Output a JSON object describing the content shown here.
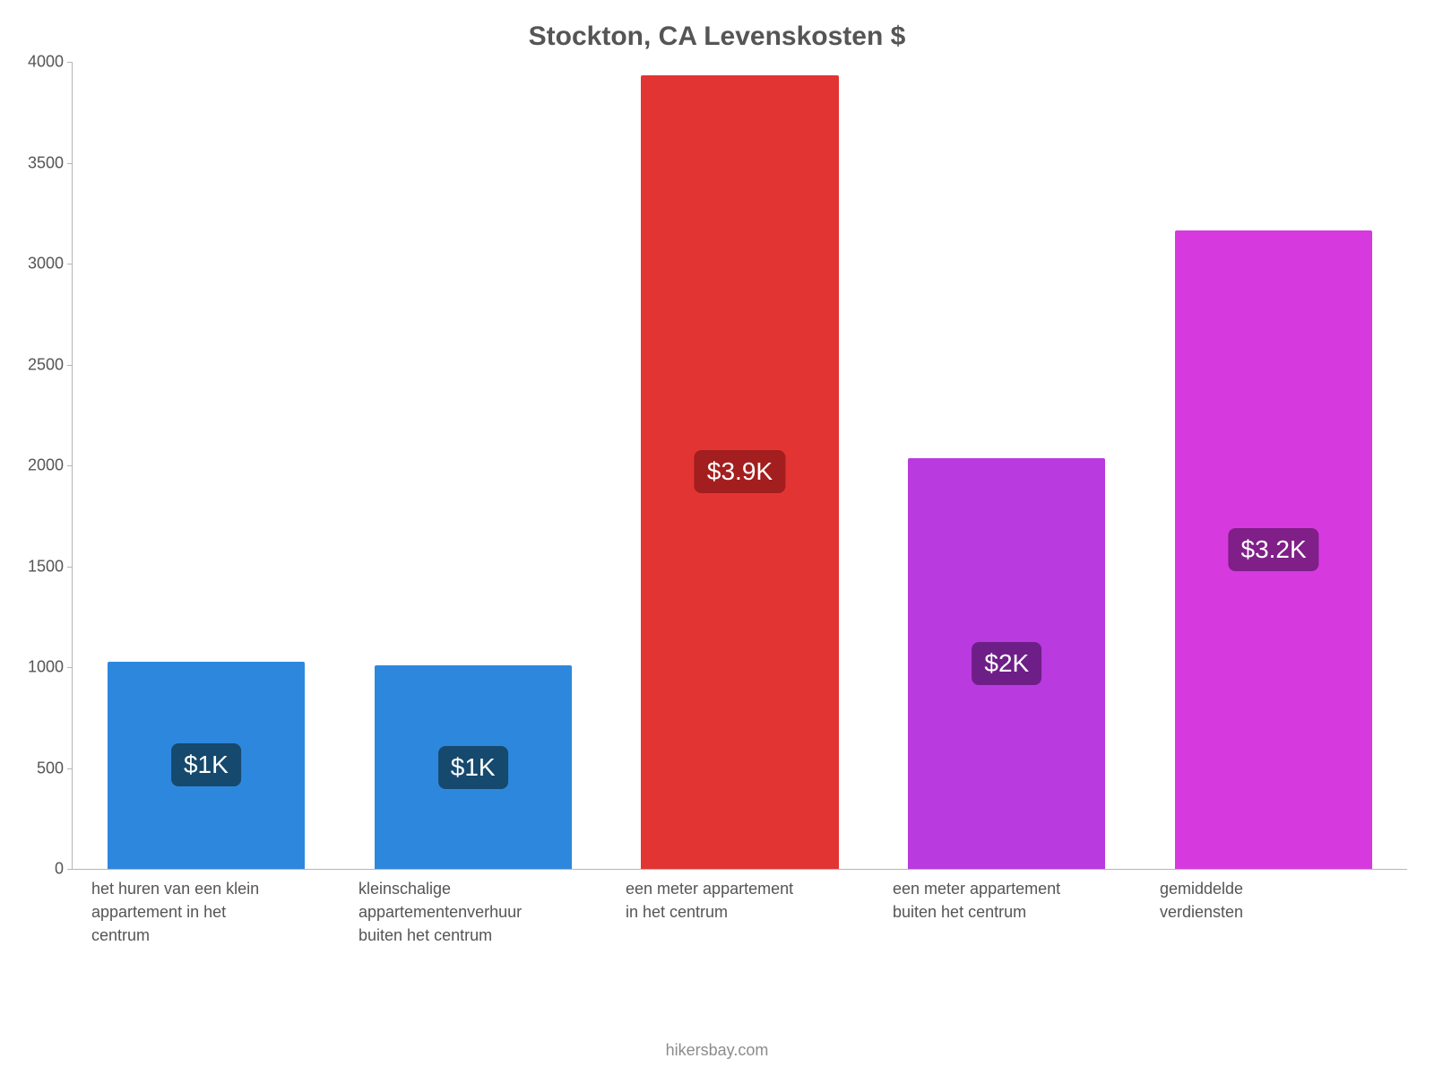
{
  "chart": {
    "type": "bar",
    "title": "Stockton, CA Levenskosten $",
    "title_fontsize": 30,
    "title_color": "#555555",
    "background_color": "#ffffff",
    "axis_color": "#b5b5b5",
    "tick_font_color": "#555555",
    "tick_fontsize": 18,
    "x_label_fontsize": 18,
    "x_label_color": "#555555",
    "ylim": [
      0,
      4000
    ],
    "ytick_step": 500,
    "yticks": [
      0,
      500,
      1000,
      1500,
      2000,
      2500,
      3000,
      3500,
      4000
    ],
    "bar_width_pct": 74,
    "categories": [
      "het huren van een klein appartement in het centrum",
      "kleinschalige appartementenverhuur buiten het centrum",
      "een meter appartement in het centrum",
      "een meter appartement buiten het centrum",
      "gemiddelde verdiensten"
    ],
    "values": [
      1030,
      1010,
      3940,
      2040,
      3170
    ],
    "value_labels": [
      "$1K",
      "$1K",
      "$3.9K",
      "$2K",
      "$3.2K"
    ],
    "bar_colors": [
      "#2d88dd",
      "#2d88dd",
      "#e33434",
      "#b93adf",
      "#d63adf"
    ],
    "badge_colors": [
      "#16496e",
      "#16496e",
      "#a31e1e",
      "#6e1f87",
      "#7f1f87"
    ],
    "badge_text_color": "#ffffff",
    "badge_fontsize": 28,
    "source_text": "hikersbay.com",
    "source_color": "#8c8c8c",
    "source_fontsize": 18
  }
}
